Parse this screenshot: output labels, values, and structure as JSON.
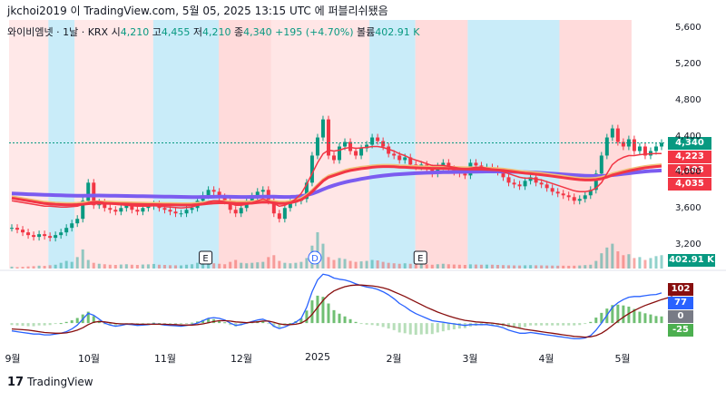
{
  "header": {
    "text": "jkchoi2019 이 TradingView.com, 5월 05, 2025 13:15 UTC 에 퍼블리쉬됐음"
  },
  "legend": {
    "symbol": "와이비엠넷 · 1날 · KRX",
    "open_label": "시",
    "open": "4,210",
    "high_label": "고",
    "high": "4,455",
    "low_label": "저",
    "low": "4,210",
    "close_label": "종",
    "close": "4,340",
    "change": "+195 (+4.70%)",
    "volume_label": "볼륨",
    "volume": "402.91 K"
  },
  "price_labels": {
    "close": "4,340",
    "ma_a": "4,223",
    "ma_b": "4,103",
    "ma_c": "4,035",
    "volume": "402.91 K",
    "colors": {
      "close": "#089981",
      "ma": "#f23645",
      "volume": "#089981"
    }
  },
  "macd_labels": {
    "a": "102",
    "b": "77",
    "c": "0",
    "d": "-25",
    "colors": {
      "a": "#880e0e",
      "b": "#2962ff",
      "c": "#787b86",
      "d": "#4caf50"
    }
  },
  "footer": {
    "logo": "17",
    "brand": "TradingView"
  },
  "chart_data": {
    "type": "line",
    "price_axis": {
      "ticks": [
        "5,600",
        "5,200",
        "4,800",
        "4,400",
        "4,000",
        "3,600",
        "3,200"
      ],
      "range": [
        2950,
        5700
      ]
    },
    "x_ticks": [
      "9월",
      "10월",
      "11월",
      "12월",
      "2025",
      "2월",
      "3월",
      "4월",
      "5월"
    ],
    "event_markers": [
      {
        "label": "E",
        "month_index": 2.4
      },
      {
        "label": "D",
        "month_index": 3.9
      },
      {
        "label": "E",
        "month_index": 5.35
      }
    ],
    "close_series": [
      3400,
      3380,
      3350,
      3320,
      3300,
      3330,
      3310,
      3290,
      3320,
      3350,
      3400,
      3450,
      3500,
      3700,
      3900,
      3650,
      3680,
      3620,
      3600,
      3580,
      3620,
      3650,
      3600,
      3580,
      3620,
      3640,
      3660,
      3620,
      3600,
      3580,
      3560,
      3560,
      3600,
      3620,
      3700,
      3760,
      3820,
      3800,
      3740,
      3700,
      3600,
      3560,
      3620,
      3700,
      3750,
      3800,
      3820,
      3700,
      3560,
      3500,
      3620,
      3680,
      3700,
      3720,
      3900,
      4200,
      4400,
      4600,
      4200,
      4150,
      4300,
      4350,
      4250,
      4200,
      4280,
      4320,
      4400,
      4360,
      4300,
      4220,
      4200,
      4150,
      4180,
      4100,
      4080,
      4100,
      4060,
      4000,
      4080,
      4120,
      4050,
      4020,
      4000,
      3980,
      4120,
      4090,
      4060,
      4070,
      4050,
      4020,
      3960,
      3900,
      3880,
      3860,
      3920,
      3960,
      3900,
      3880,
      3840,
      3800,
      3780,
      3760,
      3740,
      3700,
      3720,
      3760,
      3820,
      4000,
      4200,
      4400,
      4500,
      4350,
      4300,
      4380,
      4250,
      4300,
      4200,
      4250,
      4300,
      4340
    ],
    "ma_fast_series": [
      3700,
      3690,
      3680,
      3670,
      3660,
      3650,
      3640,
      3640,
      3635,
      3630,
      3630,
      3635,
      3640,
      3660,
      3680,
      3690,
      3690,
      3680,
      3670,
      3660,
      3655,
      3650,
      3645,
      3640,
      3640,
      3640,
      3645,
      3640,
      3635,
      3630,
      3625,
      3620,
      3625,
      3630,
      3650,
      3670,
      3690,
      3700,
      3700,
      3690,
      3670,
      3650,
      3650,
      3660,
      3680,
      3700,
      3720,
      3700,
      3670,
      3640,
      3650,
      3680,
      3720,
      3780,
      3880,
      4000,
      4120,
      4220,
      4260,
      4250,
      4260,
      4280,
      4290,
      4280,
      4285,
      4290,
      4300,
      4300,
      4290,
      4270,
      4250,
      4220,
      4200,
      4170,
      4150,
      4130,
      4110,
      4090,
      4090,
      4090,
      4080,
      4070,
      4060,
      4050,
      4060,
      4070,
      4070,
      4060,
      4050,
      4040,
      4020,
      4000,
      3980,
      3960,
      3950,
      3950,
      3940,
      3930,
      3910,
      3890,
      3870,
      3850,
      3830,
      3810,
      3800,
      3800,
      3810,
      3840,
      3900,
      4000,
      4100,
      4150,
      4180,
      4200,
      4200,
      4210,
      4215,
      4220,
      4222,
      4223
    ],
    "ma_mid_series": [
      3750,
      3740,
      3730,
      3720,
      3710,
      3700,
      3690,
      3685,
      3680,
      3678,
      3676,
      3676,
      3678,
      3682,
      3688,
      3692,
      3694,
      3692,
      3690,
      3688,
      3686,
      3684,
      3682,
      3680,
      3679,
      3678,
      3678,
      3677,
      3676,
      3675,
      3674,
      3673,
      3673,
      3674,
      3678,
      3684,
      3690,
      3695,
      3698,
      3698,
      3696,
      3692,
      3690,
      3690,
      3694,
      3700,
      3706,
      3704,
      3698,
      3690,
      3690,
      3698,
      3712,
      3732,
      3770,
      3820,
      3880,
      3940,
      3980,
      4000,
      4020,
      4040,
      4055,
      4065,
      4075,
      4082,
      4090,
      4095,
      4098,
      4098,
      4096,
      4092,
      4090,
      4086,
      4084,
      4082,
      4080,
      4078,
      4078,
      4078,
      4076,
      4074,
      4072,
      4070,
      4070,
      4070,
      4069,
      4067,
      4064,
      4060,
      4055,
      4048,
      4040,
      4032,
      4025,
      4020,
      4014,
      4008,
      4000,
      3992,
      3984,
      3976,
      3968,
      3960,
      3954,
      3950,
      3950,
      3954,
      3964,
      3982,
      4004,
      4020,
      4036,
      4050,
      4062,
      4074,
      4084,
      4092,
      4098,
      4103
    ],
    "ma_slow_series": [
      3780,
      3778,
      3775,
      3772,
      3770,
      3768,
      3766,
      3764,
      3762,
      3760,
      3758,
      3757,
      3756,
      3756,
      3757,
      3758,
      3758,
      3757,
      3756,
      3755,
      3754,
      3753,
      3752,
      3751,
      3750,
      3749,
      3748,
      3747,
      3746,
      3745,
      3744,
      3743,
      3742,
      3741,
      3741,
      3742,
      3743,
      3744,
      3745,
      3745,
      3744,
      3743,
      3742,
      3742,
      3743,
      3744,
      3746,
      3746,
      3745,
      3743,
      3742,
      3743,
      3746,
      3752,
      3762,
      3778,
      3800,
      3826,
      3850,
      3870,
      3888,
      3904,
      3918,
      3930,
      3942,
      3952,
      3962,
      3970,
      3978,
      3984,
      3990,
      3994,
      3998,
      4002,
      4005,
      4008,
      4010,
      4012,
      4014,
      4016,
      4017,
      4018,
      4019,
      4020,
      4021,
      4022,
      4023,
      4024,
      4024,
      4024,
      4023,
      4022,
      4020,
      4018,
      4016,
      4014,
      4011,
      4008,
      4004,
      4000,
      3996,
      3992,
      3988,
      3984,
      3980,
      3977,
      3975,
      3974,
      3975,
      3978,
      3984,
      3990,
      3997,
      4004,
      4011,
      4018,
      4024,
      4029,
      4032,
      4035
    ],
    "volume_series": [
      20,
      15,
      18,
      22,
      25,
      30,
      28,
      35,
      40,
      60,
      80,
      70,
      120,
      200,
      90,
      60,
      50,
      45,
      40,
      38,
      42,
      45,
      40,
      38,
      42,
      44,
      48,
      40,
      38,
      35,
      34,
      33,
      40,
      45,
      60,
      70,
      65,
      55,
      50,
      45,
      70,
      90,
      60,
      55,
      60,
      65,
      70,
      120,
      140,
      80,
      60,
      55,
      60,
      70,
      110,
      240,
      380,
      260,
      120,
      90,
      110,
      100,
      80,
      70,
      75,
      80,
      90,
      85,
      70,
      60,
      55,
      50,
      55,
      50,
      45,
      48,
      44,
      40,
      45,
      50,
      45,
      42,
      40,
      38,
      44,
      42,
      40,
      41,
      40,
      38,
      36,
      34,
      33,
      32,
      34,
      36,
      34,
      33,
      32,
      31,
      30,
      30,
      29,
      30,
      32,
      36,
      40,
      80,
      160,
      220,
      260,
      180,
      140,
      150,
      110,
      120,
      90,
      110,
      130,
      140
    ],
    "macd": {
      "ylim": [
        -60,
        130
      ],
      "line_values": [
        -20,
        -22,
        -24,
        -26,
        -28,
        -28,
        -30,
        -30,
        -28,
        -26,
        -22,
        -15,
        -5,
        10,
        25,
        20,
        10,
        0,
        -5,
        -8,
        -6,
        -3,
        -4,
        -6,
        -5,
        -4,
        -2,
        -3,
        -5,
        -6,
        -7,
        -8,
        -6,
        -4,
        0,
        6,
        12,
        14,
        12,
        8,
        0,
        -6,
        -4,
        0,
        4,
        8,
        10,
        4,
        -8,
        -14,
        -10,
        -4,
        2,
        12,
        40,
        80,
        110,
        125,
        122,
        115,
        112,
        110,
        106,
        100,
        96,
        92,
        90,
        86,
        80,
        72,
        62,
        50,
        42,
        32,
        24,
        18,
        12,
        6,
        4,
        2,
        0,
        -2,
        -4,
        -6,
        -4,
        -4,
        -4,
        -4,
        -6,
        -8,
        -12,
        -18,
        -22,
        -26,
        -26,
        -24,
        -26,
        -28,
        -30,
        -32,
        -34,
        -36,
        -38,
        -40,
        -40,
        -38,
        -32,
        -18,
        0,
        20,
        40,
        52,
        60,
        66,
        68,
        68,
        70,
        72,
        73,
        77
      ],
      "signal_values": [
        -15,
        -16,
        -17,
        -18,
        -20,
        -22,
        -24,
        -25,
        -26,
        -26,
        -25,
        -22,
        -18,
        -12,
        -4,
        2,
        4,
        3,
        1,
        -1,
        -2,
        -2,
        -2,
        -3,
        -3,
        -3,
        -3,
        -3,
        -3,
        -4,
        -4,
        -5,
        -5,
        -5,
        -4,
        -2,
        1,
        4,
        6,
        6,
        5,
        3,
        2,
        1,
        2,
        3,
        5,
        5,
        2,
        -2,
        -4,
        -4,
        -3,
        0,
        8,
        22,
        40,
        58,
        72,
        82,
        88,
        93,
        96,
        97,
        97,
        96,
        95,
        93,
        90,
        86,
        80,
        74,
        68,
        61,
        54,
        47,
        40,
        34,
        28,
        23,
        18,
        14,
        10,
        7,
        5,
        3,
        2,
        1,
        0,
        -2,
        -4,
        -7,
        -10,
        -13,
        -16,
        -18,
        -20,
        -22,
        -24,
        -26,
        -28,
        -30,
        -32,
        -34,
        -35,
        -36,
        -35,
        -32,
        -26,
        -17,
        -6,
        5,
        15,
        24,
        32,
        39,
        45,
        50,
        55,
        60,
        64,
        68
      ]
    }
  }
}
